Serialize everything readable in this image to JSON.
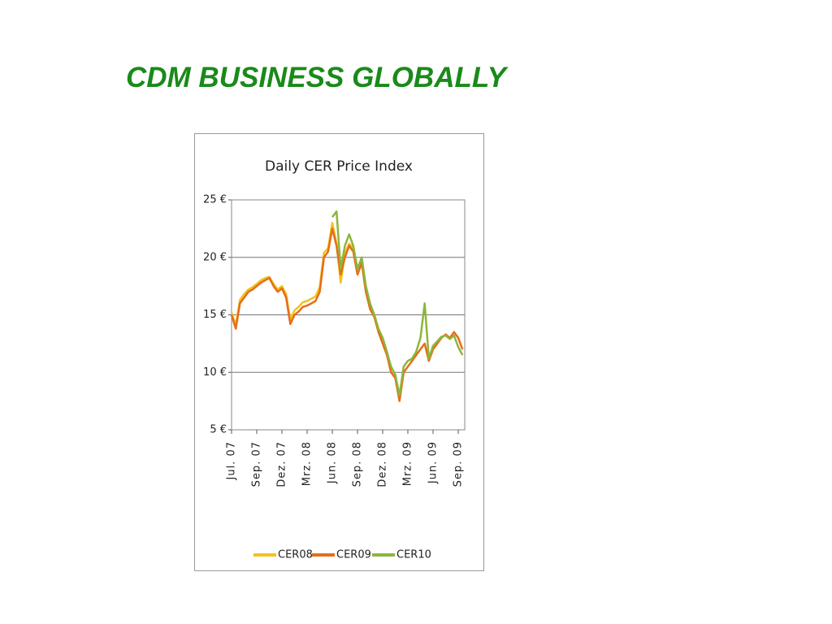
{
  "slide": {
    "title": "CDM BUSINESS GLOBALLY"
  },
  "chart_data": {
    "type": "line",
    "title": "Daily CER Price Index",
    "categories": [
      "Jul. 07",
      null,
      null,
      null,
      null,
      null,
      "Sep. 07",
      null,
      null,
      null,
      null,
      null,
      "Dez. 07",
      null,
      null,
      null,
      null,
      null,
      "Mrz. 08",
      null,
      null,
      null,
      null,
      null,
      "Jun. 08",
      null,
      null,
      null,
      null,
      null,
      "Sep. 08",
      null,
      null,
      null,
      null,
      null,
      "Dez. 08",
      null,
      null,
      null,
      null,
      null,
      "Mrz. 09",
      null,
      null,
      null,
      null,
      null,
      "Jun. 09",
      null,
      null,
      null,
      null,
      null,
      "Sep. 09",
      null
    ],
    "series": [
      {
        "name": "CER08",
        "color": "#f2c21b",
        "values": [
          15.2,
          14.1,
          16.3,
          16.8,
          17.2,
          17.4,
          17.7,
          18,
          18.2,
          18.3,
          17.7,
          17.2,
          17.5,
          16.8,
          14.5,
          15.4,
          15.7,
          16.1,
          16.2,
          16.4,
          16.6,
          17.4,
          20.4,
          20.8,
          23,
          21.2,
          17.8,
          20.3,
          21.2,
          20.8,
          19,
          19.8,
          17.2,
          15.7,
          15,
          13.7,
          12.7,
          11.7,
          10.2,
          null,
          null,
          null,
          null,
          null,
          null,
          null,
          null,
          null,
          null,
          null,
          null,
          null,
          null,
          null,
          null,
          null
        ]
      },
      {
        "name": "CER09",
        "color": "#e66d17",
        "values": [
          15,
          13.8,
          16,
          16.5,
          17,
          17.2,
          17.5,
          17.8,
          18,
          18.2,
          17.5,
          17,
          17.3,
          16.5,
          14.2,
          15,
          15.3,
          15.7,
          15.8,
          16,
          16.2,
          17,
          20,
          20.5,
          22.5,
          21,
          18.5,
          20,
          21,
          20.5,
          18.5,
          19.5,
          17,
          15.5,
          14.8,
          13.5,
          12.5,
          11.5,
          10,
          9.5,
          7.5,
          10,
          10.5,
          11,
          11.5,
          12,
          12.5,
          11,
          12,
          12.5,
          13,
          13.3,
          13,
          13.5,
          13,
          12
        ]
      },
      {
        "name": "CER10",
        "color": "#8cb63c",
        "values": [
          null,
          null,
          null,
          null,
          null,
          null,
          null,
          null,
          null,
          null,
          null,
          null,
          null,
          null,
          null,
          null,
          null,
          null,
          null,
          null,
          null,
          null,
          null,
          null,
          23.5,
          24,
          19,
          21,
          22,
          21,
          19,
          20,
          17.5,
          16,
          15,
          13.8,
          13,
          11.8,
          10.5,
          9.8,
          8,
          10.5,
          11,
          11.2,
          11.8,
          13,
          16,
          11.2,
          12.3,
          12.7,
          13.1,
          13.2,
          12.9,
          13.2,
          12.2,
          11.5
        ]
      }
    ],
    "ylim": [
      5,
      25
    ],
    "yticks": [
      {
        "value": 5,
        "label": "5 €"
      },
      {
        "value": 10,
        "label": "10 €"
      },
      {
        "value": 15,
        "label": "15 €"
      },
      {
        "value": 20,
        "label": "20 €"
      },
      {
        "value": 25,
        "label": "25 €"
      }
    ],
    "grid": true,
    "legend": "bottom"
  }
}
